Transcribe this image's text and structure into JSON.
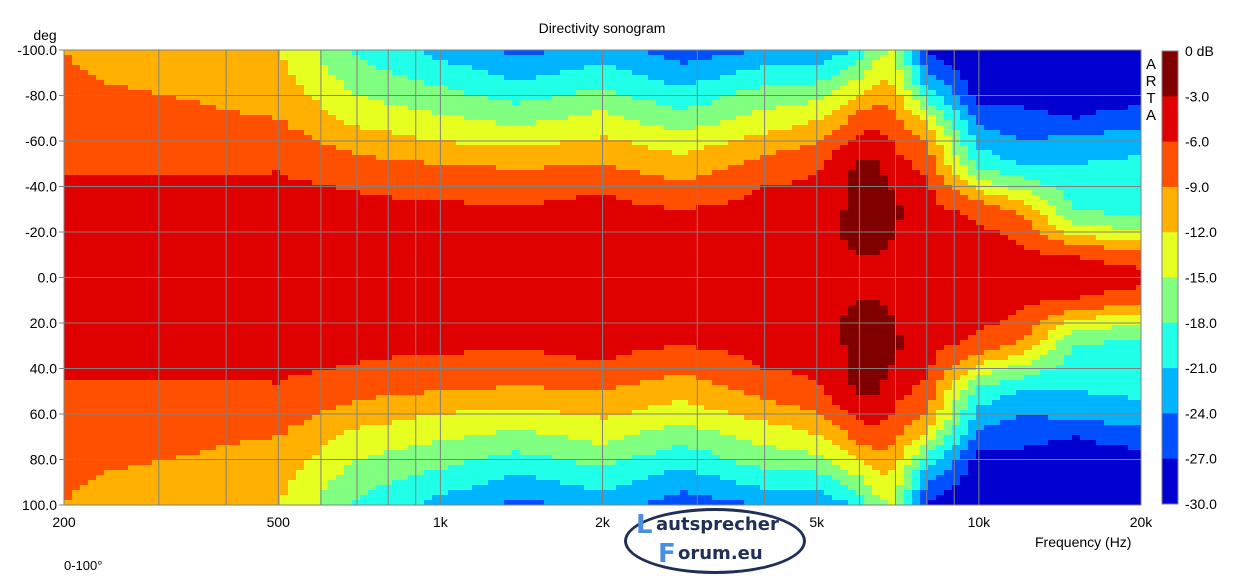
{
  "chart_data": {
    "type": "heatmap",
    "title": "Directivity sonogram",
    "xlabel": "Frequency (Hz)",
    "ylabel": "deg",
    "footnote": "0-100°",
    "watermark": "ARTA",
    "xscale": "log",
    "xlim": [
      200,
      20000
    ],
    "ylim": [
      -100,
      100
    ],
    "x_ticks": [
      {
        "v": 200,
        "label": "200"
      },
      {
        "v": 500,
        "label": "500"
      },
      {
        "v": 1000,
        "label": "1k"
      },
      {
        "v": 2000,
        "label": "2k"
      },
      {
        "v": 5000,
        "label": "5k"
      },
      {
        "v": 10000,
        "label": "10k"
      },
      {
        "v": 20000,
        "label": "20k"
      }
    ],
    "y_ticks": [
      {
        "v": -100,
        "label": "-100.0"
      },
      {
        "v": -80,
        "label": "-80.0"
      },
      {
        "v": -60,
        "label": "-60.0"
      },
      {
        "v": -40,
        "label": "-40.0"
      },
      {
        "v": -20,
        "label": "-20.0"
      },
      {
        "v": 0,
        "label": "0.0"
      },
      {
        "v": 20,
        "label": "20.0"
      },
      {
        "v": 40,
        "label": "40.0"
      },
      {
        "v": 60,
        "label": "60.0"
      },
      {
        "v": 80,
        "label": "80.0"
      },
      {
        "v": 100,
        "label": "100.0"
      }
    ],
    "grid": true,
    "colorbar": {
      "labels": [
        "0 dB",
        "-3.0",
        "-6.0",
        "-9.0",
        "-12.0",
        "-15.0",
        "-18.0",
        "-21.0",
        "-24.0",
        "-27.0",
        "-30.0"
      ],
      "colors": [
        "#800000",
        "#e00000",
        "#ff5000",
        "#ffb000",
        "#e6ff20",
        "#80ff80",
        "#20ffe8",
        "#00b4ff",
        "#0050ff",
        "#0000d0"
      ],
      "step_db": 3,
      "min_db": -30,
      "max_db": 0
    },
    "symmetric_about_zero": true,
    "angles": [
      0,
      10,
      20,
      30,
      40,
      50,
      60,
      70,
      80,
      90,
      100
    ],
    "frequencies": [
      200,
      300,
      500,
      700,
      1000,
      1400,
      2000,
      2800,
      4000,
      5000,
      6000,
      6500,
      7000,
      8000,
      10000,
      12000,
      15000,
      20000
    ],
    "levels_db": [
      [
        -4,
        -4,
        -4.2,
        -4.6,
        -5.2,
        -6.5,
        -7.5,
        -8,
        -8.4,
        -8.7,
        -9
      ],
      [
        -4,
        -4,
        -4.3,
        -4.8,
        -5.5,
        -6.5,
        -7.5,
        -8.2,
        -8.9,
        -10,
        -11.5
      ],
      [
        -4,
        -4,
        -4.3,
        -4.8,
        -5.5,
        -6.3,
        -7.5,
        -9,
        -10,
        -11,
        -12
      ],
      [
        -4,
        -4,
        -4.5,
        -5.3,
        -6.2,
        -8,
        -10.5,
        -13,
        -15,
        -17,
        -18.5
      ],
      [
        -4,
        -4.2,
        -4.6,
        -5.5,
        -7,
        -9,
        -12,
        -14.5,
        -17,
        -19.5,
        -22
      ],
      [
        -4,
        -4.2,
        -4.7,
        -5.6,
        -7.5,
        -9.5,
        -13,
        -16,
        -19,
        -22,
        -25
      ],
      [
        -4,
        -4.1,
        -4.5,
        -5.2,
        -6.3,
        -9,
        -11.5,
        -14,
        -17,
        -20,
        -22.5
      ],
      [
        -4,
        -4.3,
        -5,
        -6,
        -8.5,
        -11,
        -13.5,
        -17,
        -20,
        -23,
        -25.5
      ],
      [
        -4,
        -4,
        -4.4,
        -5,
        -6,
        -8,
        -11,
        -14,
        -16.5,
        -20,
        -24
      ],
      [
        -4,
        -4,
        -4.3,
        -4.8,
        -5.5,
        -6.5,
        -9,
        -12.5,
        -16,
        -20,
        -24
      ],
      [
        -3.5,
        -3,
        -2,
        -2,
        -2,
        -2.5,
        -5,
        -8,
        -12,
        -16,
        -20
      ],
      [
        -3.5,
        -3,
        -2,
        -2,
        -2,
        -2.5,
        -4.5,
        -7,
        -10,
        -13,
        -16
      ],
      [
        -3.5,
        -3.5,
        -3,
        -2.5,
        -3.5,
        -5,
        -6.5,
        -8.5,
        -11,
        -13,
        -14.5
      ],
      [
        -4,
        -4.2,
        -4.5,
        -5,
        -5.5,
        -7,
        -9,
        -13,
        -19,
        -24,
        -28
      ],
      [
        -4,
        -4.5,
        -5.5,
        -7,
        -13,
        -19,
        -22,
        -25,
        -28,
        -29,
        -30
      ],
      [
        -4.5,
        -5.5,
        -6.5,
        -10,
        -16,
        -21,
        -24,
        -26,
        -28,
        -29,
        -30
      ],
      [
        -4.5,
        -6,
        -13,
        -18,
        -19.5,
        -21,
        -23,
        -27,
        -29,
        -30,
        -30
      ],
      [
        -5,
        -7.5,
        -15,
        -19.5,
        -20,
        -20.5,
        -22,
        -25.5,
        -28,
        -29.5,
        -30
      ]
    ]
  },
  "logo": {
    "line1": "autsprecher",
    "line2": "orum.eu",
    "initial1": "L",
    "initial2": "F"
  }
}
